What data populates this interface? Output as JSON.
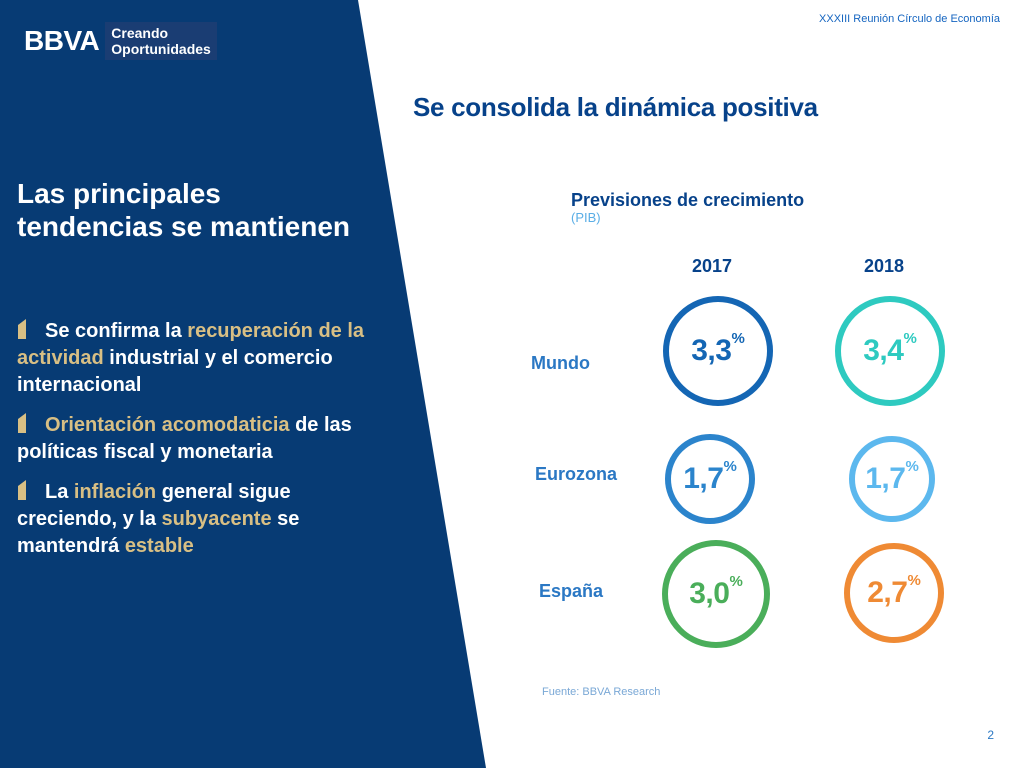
{
  "header": {
    "brand": "BBVA",
    "slogan_line1": "Creando",
    "slogan_line2": "Oportunidades",
    "event": "XXXIII Reunión Círculo de Economía"
  },
  "main_title": "Se consolida la dinámica positiva",
  "left_panel": {
    "title_line1": "Las principales",
    "title_line2": "tendencias se mantienen",
    "bullets": [
      {
        "p1": "Se confirma la ",
        "h1": "recuperación de la actividad",
        "p2": " industrial y el comercio internacional"
      },
      {
        "h1": "Orientación acomodaticia",
        "p2": " de las políticas fiscal y monetaria"
      },
      {
        "p1": "La ",
        "h1": "inflación",
        "p2": " general sigue creciendo, y la ",
        "h2": "subyacente",
        "p3": " se mantendrá ",
        "h3": "estable"
      }
    ]
  },
  "colors": {
    "navy": "#073b74",
    "accent_gold": "#d8bf84",
    "mundo_2017": "#1466b4",
    "mundo_2018": "#2ecac0",
    "eurozona_2017": "#2b84cc",
    "eurozona_2018": "#5cb8ee",
    "espana_2017": "#4aae5a",
    "espana_2018": "#ef8a34"
  },
  "chart_data": {
    "type": "table",
    "title": "Previsiones de crecimiento",
    "subtitle": "(PIB)",
    "columns": [
      "2017",
      "2018"
    ],
    "unit": "%",
    "rows": [
      {
        "label": "Mundo",
        "values": [
          "3,3",
          "3,4"
        ]
      },
      {
        "label": "Eurozona",
        "values": [
          "1,7",
          "1,7"
        ]
      },
      {
        "label": "España",
        "values": [
          "3,0",
          "2,7"
        ]
      }
    ]
  },
  "source": "Fuente: BBVA Research",
  "page_number": "2"
}
